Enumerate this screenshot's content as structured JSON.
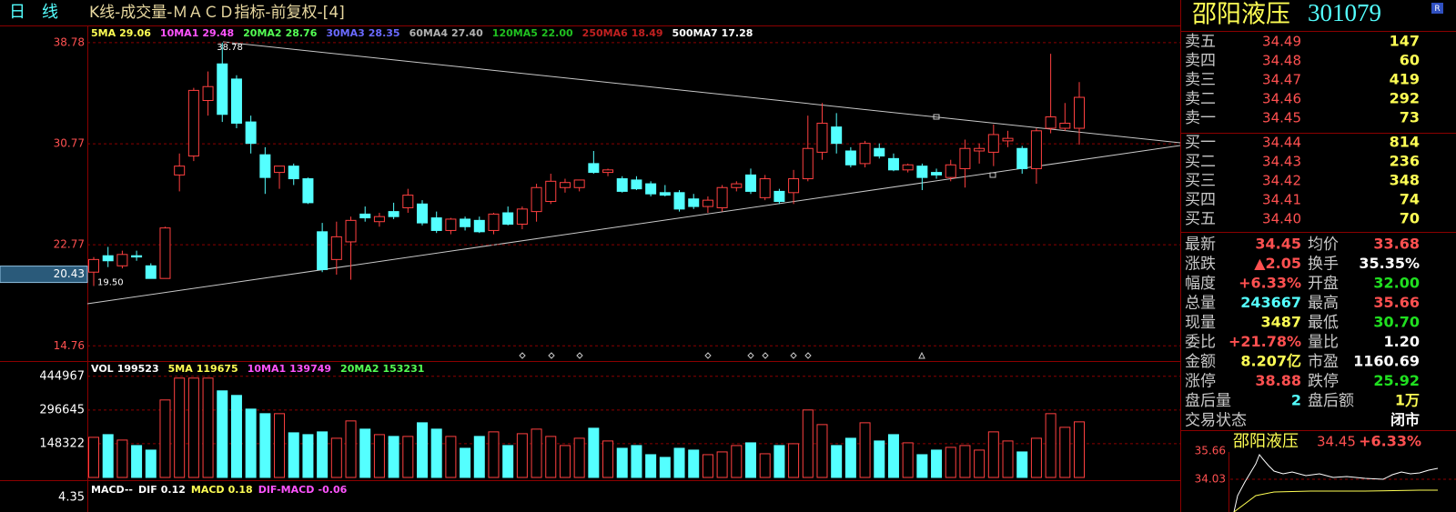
{
  "header": {
    "period": "日　线",
    "title": "K线-成交量-ＭＡＣＤ指标-前复权-[4]"
  },
  "stock": {
    "name": "邵阳液压",
    "code": "301079",
    "badge": "R"
  },
  "chart_data": [
    {
      "type": "candlestick",
      "up_color": "#ff4040",
      "down_color": "#54ffff",
      "legend": [
        {
          "name": "5MA",
          "value": "29.06",
          "color": "#ffff54"
        },
        {
          "name": "10MA1",
          "value": "29.48",
          "color": "#ff54ff"
        },
        {
          "name": "20MA2",
          "value": "28.76",
          "color": "#54ff54"
        },
        {
          "name": "30MA3",
          "value": "28.35",
          "color": "#6a6aff"
        },
        {
          "name": "60MA4",
          "value": "27.40",
          "color": "#b0b0b0"
        },
        {
          "name": "120MA5",
          "value": "22.00",
          "color": "#20c020"
        },
        {
          "name": "250MA6",
          "value": "18.49",
          "color": "#c02020"
        },
        {
          "name": "500MA7",
          "value": "17.28",
          "color": "#ffffff"
        }
      ],
      "open": [
        20.6,
        21.9,
        21.1,
        21.9,
        21.1,
        20.1,
        28.3,
        29.8,
        34.2,
        37.1,
        35.9,
        32.5,
        29.9,
        28.5,
        29.0,
        28.0,
        23.8,
        21.6,
        23.0,
        25.2,
        24.6,
        25.4,
        25.7,
        26.0,
        24.9,
        23.9,
        24.8,
        24.7,
        23.9,
        25.3,
        24.4,
        25.4,
        26.2,
        27.3,
        27.3,
        29.2,
        28.5,
        28.0,
        27.9,
        27.6,
        26.9,
        26.9,
        26.4,
        25.8,
        25.7,
        27.3,
        28.3,
        26.5,
        27.0,
        26.9,
        28.0,
        30.1,
        32.1,
        30.2,
        29.2,
        30.4,
        29.6,
        28.7,
        29.0,
        28.5,
        28.1,
        28.8,
        30.2,
        30.1,
        31.0,
        30.4,
        28.8,
        32.0,
        32.0,
        32.0
      ],
      "high": [
        21.8,
        22.6,
        22.3,
        22.3,
        21.3,
        24.2,
        30.0,
        35.2,
        36.5,
        38.78,
        36.2,
        33.0,
        30.5,
        29.0,
        29.2,
        28.1,
        24.5,
        24.6,
        25.0,
        25.8,
        25.3,
        26.1,
        27.2,
        26.3,
        25.4,
        24.9,
        25.0,
        25.0,
        25.3,
        25.8,
        25.8,
        27.6,
        28.4,
        28.0,
        27.9,
        30.2,
        28.8,
        28.2,
        28.2,
        27.8,
        27.5,
        27.1,
        26.8,
        26.6,
        27.5,
        27.8,
        28.8,
        28.3,
        27.2,
        28.7,
        33.0,
        34.0,
        33.2,
        30.5,
        31.0,
        30.8,
        30.0,
        29.2,
        29.2,
        28.8,
        29.5,
        31.1,
        30.8,
        32.3,
        31.8,
        30.6,
        32.0,
        37.9,
        34.0,
        35.66
      ],
      "low": [
        19.5,
        21.0,
        20.9,
        21.5,
        20.1,
        20.1,
        27.0,
        29.4,
        33.0,
        32.5,
        32.0,
        30.0,
        26.8,
        27.2,
        27.5,
        26.0,
        20.6,
        20.4,
        20.0,
        24.6,
        24.2,
        24.8,
        25.3,
        24.3,
        23.7,
        23.6,
        23.9,
        23.7,
        23.6,
        24.3,
        24.0,
        24.6,
        26.0,
        26.9,
        27.0,
        28.4,
        28.2,
        26.9,
        27.1,
        26.6,
        26.6,
        25.4,
        25.6,
        25.3,
        25.4,
        27.0,
        26.8,
        26.3,
        26.0,
        26.0,
        27.8,
        29.5,
        30.0,
        28.9,
        28.9,
        29.6,
        28.6,
        28.5,
        27.1,
        28.0,
        27.8,
        27.3,
        29.2,
        29.0,
        30.5,
        28.4,
        27.6,
        31.6,
        31.8,
        30.7
      ],
      "close": [
        21.6,
        21.5,
        22.0,
        21.8,
        20.1,
        24.1,
        29.0,
        35.0,
        35.3,
        33.1,
        32.4,
        30.8,
        28.1,
        29.0,
        28.0,
        26.1,
        20.8,
        23.4,
        24.7,
        24.9,
        25.0,
        25.0,
        26.7,
        24.5,
        23.9,
        24.8,
        24.2,
        23.8,
        25.2,
        24.4,
        25.6,
        27.3,
        27.8,
        27.7,
        27.9,
        28.5,
        28.7,
        27.0,
        27.2,
        26.8,
        26.7,
        25.6,
        25.8,
        26.3,
        27.3,
        27.6,
        27.0,
        28.0,
        26.2,
        28.0,
        30.4,
        32.4,
        30.8,
        29.1,
        30.8,
        29.8,
        28.7,
        29.1,
        28.1,
        28.3,
        29.1,
        30.4,
        30.4,
        31.5,
        31.2,
        28.8,
        31.8,
        32.9,
        32.4,
        34.45
      ],
      "ylim": [
        13.7,
        40.0
      ],
      "yticks": [
        38.78,
        30.77,
        22.77,
        14.76
      ],
      "grid": true,
      "cursor_price": 20.43,
      "high_mark": "38.78",
      "low_mark": "19.50"
    },
    {
      "type": "bar",
      "legend": [
        {
          "name": "VOL",
          "value": "199523",
          "color": "#ffffff"
        },
        {
          "name": "5MA",
          "value": "119675",
          "color": "#ffff54"
        },
        {
          "name": "10MA1",
          "value": "139749",
          "color": "#ff54ff"
        },
        {
          "name": "20MA2",
          "value": "153231",
          "color": "#54ff54"
        }
      ],
      "values": [
        176400,
        188400,
        164400,
        140300,
        120300,
        340800,
        437000,
        437000,
        437000,
        380900,
        360800,
        300700,
        280600,
        280600,
        196400,
        188400,
        200500,
        172400,
        248600,
        212500,
        188400,
        180400,
        180400,
        240500,
        212500,
        180400,
        128300,
        180400,
        200500,
        140300,
        192400,
        212500,
        180400,
        140300,
        172400,
        216500,
        160400,
        128300,
        140300,
        100200,
        88200,
        128300,
        120300,
        100200,
        112300,
        140300,
        152300,
        104200,
        140300,
        148300,
        296700,
        232500,
        140300,
        172400,
        240500,
        160400,
        188400,
        152300,
        100200,
        120300,
        132300,
        140300,
        120300,
        200500,
        160400,
        112300,
        172400,
        280600,
        220500,
        244500
      ],
      "ylim": [
        0,
        500000
      ],
      "yticks": [
        444967,
        296645,
        148322
      ],
      "grid": true
    },
    {
      "type": "macd",
      "title": "MACD--",
      "legend": [
        {
          "name": "DIF",
          "value": "0.12",
          "color": "#ffffff"
        },
        {
          "name": "MACD",
          "value": "0.18",
          "color": "#ffff54"
        },
        {
          "name": "DIF-MACD",
          "value": "-0.06",
          "color": "#ff54ff"
        }
      ],
      "ylim": [
        -4.35,
        4.8
      ],
      "yticks": [
        4.35
      ]
    }
  ],
  "order_book": [
    {
      "label": "卖五",
      "price": "34.49",
      "volume": "147"
    },
    {
      "label": "卖四",
      "price": "34.48",
      "volume": "60"
    },
    {
      "label": "卖三",
      "price": "34.47",
      "volume": "419"
    },
    {
      "label": "卖二",
      "price": "34.46",
      "volume": "292"
    },
    {
      "label": "卖一",
      "price": "34.45",
      "volume": "73"
    },
    {
      "label": "买一",
      "price": "34.44",
      "volume": "814"
    },
    {
      "label": "买二",
      "price": "34.43",
      "volume": "236"
    },
    {
      "label": "买三",
      "price": "34.42",
      "volume": "348"
    },
    {
      "label": "买四",
      "price": "34.41",
      "volume": "74"
    },
    {
      "label": "买五",
      "price": "34.40",
      "volume": "70"
    }
  ],
  "stats": [
    [
      {
        "label": "最新",
        "value": "34.45",
        "color": "#ff5050"
      },
      {
        "label": "均价",
        "value": "33.68",
        "color": "#ff5050"
      }
    ],
    [
      {
        "label": "涨跌",
        "value": "▲2.05",
        "color": "#ff5050"
      },
      {
        "label": "换手",
        "value": "35.35%",
        "color": "#ffffff"
      }
    ],
    [
      {
        "label": "幅度",
        "value": "+6.33%",
        "color": "#ff5050"
      },
      {
        "label": "开盘",
        "value": "32.00",
        "color": "#20e020"
      }
    ],
    [
      {
        "label": "总量",
        "value": "243667",
        "color": "#54ffff"
      },
      {
        "label": "最高",
        "value": "35.66",
        "color": "#ff5050"
      }
    ],
    [
      {
        "label": "现量",
        "value": "3487",
        "color": "#ffff54"
      },
      {
        "label": "最低",
        "value": "30.70",
        "color": "#20e020"
      }
    ],
    [
      {
        "label": "委比",
        "value": "+21.78%",
        "color": "#ff5050"
      },
      {
        "label": "量比",
        "value": "1.20",
        "color": "#ffffff"
      }
    ],
    [
      {
        "label": "金额",
        "value": "8.207亿",
        "color": "#ffff54"
      },
      {
        "label": "市盈",
        "value": "1160.69",
        "color": "#ffffff"
      }
    ],
    [
      {
        "label": "涨停",
        "value": "38.88",
        "color": "#ff5050"
      },
      {
        "label": "跌停",
        "value": "25.92",
        "color": "#20e020"
      }
    ],
    [
      {
        "label": "盘后量",
        "value": "2",
        "color": "#54ffff"
      },
      {
        "label": "盘后额",
        "value": "1万",
        "color": "#ffff54"
      }
    ],
    [
      {
        "label": "交易状态",
        "value": "闭市",
        "color": "#ffffff"
      }
    ]
  ],
  "mini": {
    "name": "邵阳液压",
    "price": "34.45",
    "change": "+6.33%",
    "yticks": [
      "35.66",
      "34.03"
    ]
  }
}
